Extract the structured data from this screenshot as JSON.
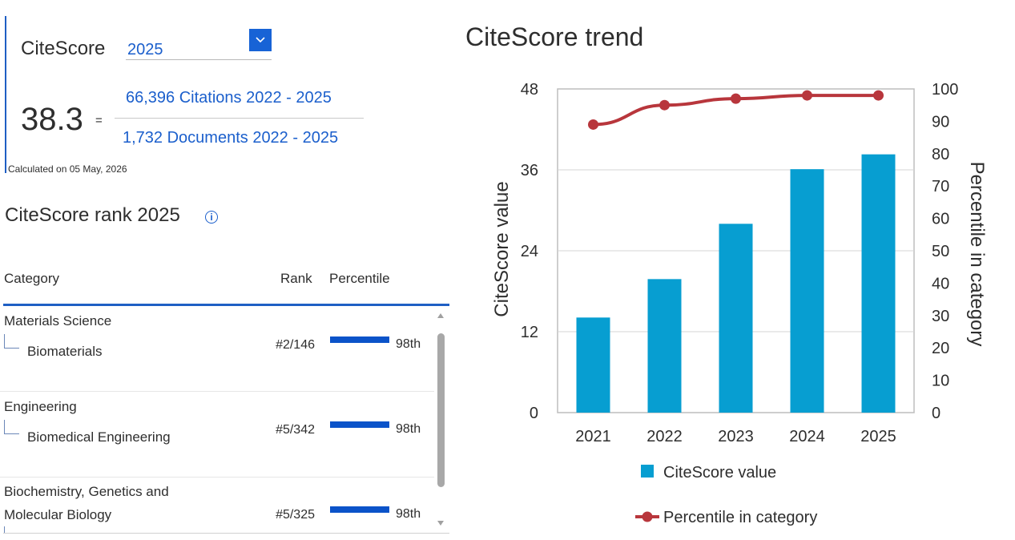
{
  "summary": {
    "label": "CiteScore",
    "year": "2025",
    "score": "38.3",
    "equals": "=",
    "citations_text": "66,396 Citations 2022 - 2025",
    "documents_text": "1,732 Documents 2022 - 2025",
    "calculated": "Calculated on 05 May, 2026"
  },
  "icons": {
    "dropdown": "chevron-down-icon",
    "info": "info-icon"
  },
  "rank": {
    "title": "CiteScore rank 2025",
    "info_glyph": "i",
    "headers": {
      "category": "Category",
      "rank": "Rank",
      "percentile": "Percentile"
    },
    "rows": [
      {
        "category": "Materials Science",
        "sub": "Biomaterials",
        "rank": "#2/146",
        "percentile": "98th",
        "pct_value": 98
      },
      {
        "category": "Engineering",
        "sub": "Biomedical Engineering",
        "rank": "#5/342",
        "percentile": "98th",
        "pct_value": 98
      },
      {
        "category": "Biochemistry, Genetics and",
        "sub": "Molecular Biology",
        "rank": "#5/325",
        "percentile": "98th",
        "pct_value": 98
      }
    ]
  },
  "colors": {
    "link": "#1b5fcc",
    "accent": "#1f5fc4",
    "bar": "#079ed1",
    "line": "#b8363c",
    "percentile_bar": "#0b53c9"
  },
  "chart_data": {
    "type": "bar",
    "title": "CiteScore trend",
    "categories": [
      "2021",
      "2022",
      "2023",
      "2024",
      "2025"
    ],
    "series": [
      {
        "name": "CiteScore value",
        "type": "bar",
        "axis": "left",
        "values": [
          14.1,
          19.8,
          28.0,
          36.1,
          38.3
        ]
      },
      {
        "name": "Percentile in category",
        "type": "line",
        "axis": "right",
        "values": [
          89,
          95,
          97,
          98,
          98
        ]
      }
    ],
    "ylabel": "CiteScore value",
    "y2label": "Percentile in category",
    "ylim": [
      0,
      48
    ],
    "yticks": [
      "0",
      "12",
      "24",
      "36",
      "48"
    ],
    "y2lim": [
      0,
      100
    ],
    "y2ticks": [
      "0",
      "10",
      "20",
      "30",
      "40",
      "50",
      "60",
      "70",
      "80",
      "90",
      "100"
    ],
    "grid": true,
    "legend_position": "bottom"
  }
}
